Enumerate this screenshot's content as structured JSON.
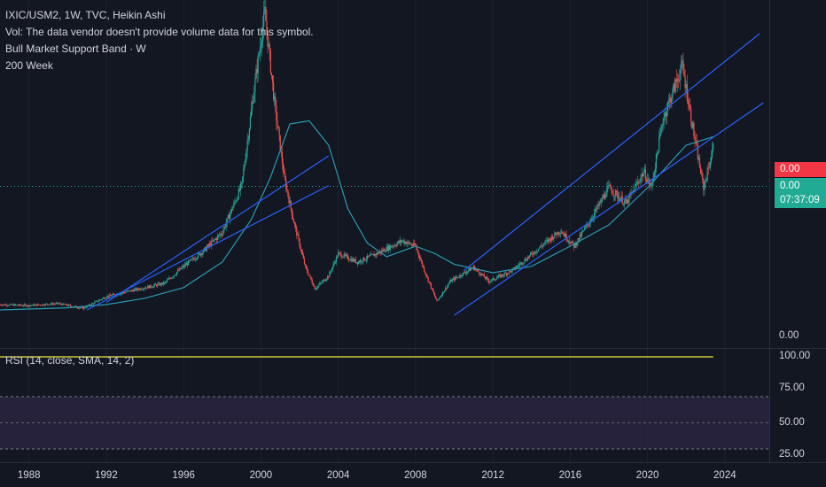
{
  "legend": {
    "symbol_line": "IXIC/USM2, 1W, TVC, Heikin Ashi",
    "vol_line": "Vol: The data vendor doesn't provide volume data for this symbol.",
    "band_line": "Bull Market Support Band · W",
    "ma_line": "200 Week"
  },
  "rsi": {
    "label": "RSI (14, close, SMA, 14, 2)",
    "value_tag": "100.00",
    "levels": [
      "75.00",
      "50.00",
      "25.00"
    ]
  },
  "price_axis": {
    "last_tag": "0.00",
    "current_tag": "0.00",
    "countdown": "07:37:09",
    "bottom_label": "0.00"
  },
  "colors": {
    "background": "#131722",
    "up_candle": "#26a69a",
    "down_candle": "#ef5350",
    "ma_line": "#2a9bb0",
    "channel_line": "#2962ff",
    "rsi_line": "#f7e83b",
    "rsi_band": "#2a2440"
  },
  "chart_data": {
    "type": "candlestick",
    "x_ticks": [
      "1988",
      "1992",
      "1996",
      "2000",
      "2004",
      "2008",
      "2012",
      "2016",
      "2020",
      "2024"
    ],
    "x_tick_years": [
      1988,
      1992,
      1996,
      2000,
      2004,
      2008,
      2012,
      2016,
      2020,
      2024
    ],
    "x_range": [
      1986.5,
      2026.3
    ],
    "price_series": {
      "name": "IXIC/USM2",
      "points": [
        [
          1986.5,
          0.0
        ],
        [
          1988.0,
          -0.8
        ],
        [
          1989.5,
          1.0
        ],
        [
          1990.8,
          -3.5
        ],
        [
          1992.0,
          7.5
        ],
        [
          1993.5,
          14.0
        ],
        [
          1995.0,
          20.0
        ],
        [
          1996.0,
          36.0
        ],
        [
          1997.0,
          50.0
        ],
        [
          1998.0,
          68.0
        ],
        [
          1999.0,
          112.0
        ],
        [
          1999.7,
          210.0
        ],
        [
          2000.2,
          275.0
        ],
        [
          2000.7,
          190.0
        ],
        [
          2001.2,
          120.0
        ],
        [
          2001.7,
          78.0
        ],
        [
          2002.3,
          35.0
        ],
        [
          2002.8,
          15.0
        ],
        [
          2003.5,
          27.0
        ],
        [
          2004.0,
          48.0
        ],
        [
          2005.0,
          40.0
        ],
        [
          2006.0,
          48.0
        ],
        [
          2007.3,
          60.0
        ],
        [
          2008.0,
          55.0
        ],
        [
          2008.5,
          30.0
        ],
        [
          2009.1,
          3.0
        ],
        [
          2009.8,
          22.0
        ],
        [
          2011.0,
          35.0
        ],
        [
          2011.8,
          22.0
        ],
        [
          2013.0,
          32.0
        ],
        [
          2014.5,
          55.0
        ],
        [
          2015.5,
          70.0
        ],
        [
          2016.2,
          55.0
        ],
        [
          2017.0,
          78.0
        ],
        [
          2018.0,
          110.0
        ],
        [
          2018.9,
          95.0
        ],
        [
          2019.8,
          125.0
        ],
        [
          2020.2,
          110.0
        ],
        [
          2020.8,
          175.0
        ],
        [
          2021.8,
          225.0
        ],
        [
          2022.5,
          150.0
        ],
        [
          2022.9,
          110.0
        ],
        [
          2023.3,
          140.0
        ],
        [
          2023.4,
          148.0
        ]
      ]
    },
    "ma_series": {
      "name": "200 Week",
      "points": [
        [
          1986.5,
          -5.0
        ],
        [
          1990.0,
          -3.0
        ],
        [
          1992.0,
          0.0
        ],
        [
          1994.0,
          6.0
        ],
        [
          1996.0,
          16.0
        ],
        [
          1998.0,
          40.0
        ],
        [
          1999.5,
          80.0
        ],
        [
          2000.5,
          120.0
        ],
        [
          2001.5,
          170.0
        ],
        [
          2002.5,
          173.0
        ],
        [
          2003.5,
          150.0
        ],
        [
          2004.5,
          90.0
        ],
        [
          2005.5,
          58.0
        ],
        [
          2006.5,
          45.0
        ],
        [
          2008.0,
          55.0
        ],
        [
          2009.0,
          48.0
        ],
        [
          2010.0,
          38.0
        ],
        [
          2012.0,
          30.0
        ],
        [
          2014.0,
          36.0
        ],
        [
          2016.0,
          55.0
        ],
        [
          2018.0,
          75.0
        ],
        [
          2020.0,
          110.0
        ],
        [
          2022.0,
          150.0
        ],
        [
          2023.4,
          158.0
        ]
      ]
    },
    "channel_lines": [
      {
        "from": [
          1992.0,
          2.0
        ],
        "to": [
          2003.5,
          140.0
        ]
      },
      {
        "from": [
          1991.0,
          -5.0
        ],
        "to": [
          2003.5,
          112.0
        ]
      },
      {
        "from": [
          2010.5,
          32.0
        ],
        "to": [
          2025.8,
          255.0
        ]
      },
      {
        "from": [
          2010.0,
          -10.0
        ],
        "to": [
          2026.0,
          190.0
        ]
      }
    ],
    "rsi": {
      "value": 100.0,
      "levels": [
        75,
        50,
        25
      ],
      "x_end": 2023.4
    }
  }
}
